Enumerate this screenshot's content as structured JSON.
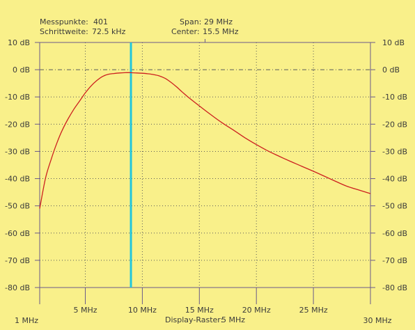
{
  "header": {
    "points_label": "Messpunkte:",
    "points_value": "401",
    "step_label": "Schrittweite:",
    "step_value": "72.5 kHz",
    "span_label": "Span:",
    "span_value": "29 MHz",
    "center_label": "Center:",
    "center_value": "15.5 MHz"
  },
  "footer": {
    "raster_label": "Display-Raster:",
    "raster_value": "5 MHz"
  },
  "colors": {
    "background": "#f9f08a",
    "axis": "#6a5a8a",
    "grid": "#5a5a5a",
    "trace": "#cc1f1f",
    "marker": "#22c6dc"
  },
  "chart_data": {
    "type": "line",
    "xlim": [
      1,
      30
    ],
    "ylim": [
      -80,
      10
    ],
    "x_unit": "MHz",
    "y_unit": "dB",
    "xticks": [
      {
        "value": 1,
        "label": "1 MHz"
      },
      {
        "value": 5,
        "label": "5 MHz"
      },
      {
        "value": 10,
        "label": "10 MHz"
      },
      {
        "value": 15,
        "label": "15 MHz"
      },
      {
        "value": 20,
        "label": "20 MHz"
      },
      {
        "value": 25,
        "label": "25 MHz"
      },
      {
        "value": 30,
        "label": "30 MHz"
      }
    ],
    "yticks": [
      {
        "value": 10,
        "label": "10 dB"
      },
      {
        "value": 0,
        "label": "0 dB"
      },
      {
        "value": -10,
        "label": "-10 dB"
      },
      {
        "value": -20,
        "label": "-20 dB"
      },
      {
        "value": -30,
        "label": "-30 dB"
      },
      {
        "value": -40,
        "label": "-40 dB"
      },
      {
        "value": -50,
        "label": "-50 dB"
      },
      {
        "value": -60,
        "label": "-60 dB"
      },
      {
        "value": -70,
        "label": "-70 dB"
      },
      {
        "value": -80,
        "label": "-80 dB"
      }
    ],
    "grid": true,
    "reference_level_db": 0,
    "marker_x": 9.0,
    "series": [
      {
        "x": [
          1,
          1.5,
          2,
          2.5,
          3,
          3.5,
          4,
          4.5,
          5,
          5.5,
          6,
          6.5,
          7,
          7.5,
          8,
          8.5,
          9,
          9.5,
          10,
          10.5,
          11,
          11.5,
          12,
          12.5,
          13,
          13.5,
          14,
          15,
          16,
          17,
          18,
          19,
          20,
          21,
          22,
          23,
          24,
          25,
          26,
          27,
          28,
          29,
          30
        ],
        "y": [
          -51,
          -40,
          -33,
          -27,
          -22,
          -18,
          -14.5,
          -11.5,
          -8.5,
          -6,
          -4,
          -2.5,
          -1.7,
          -1.4,
          -1.2,
          -1.1,
          -1.1,
          -1.2,
          -1.3,
          -1.5,
          -1.8,
          -2.3,
          -3.2,
          -4.6,
          -6.3,
          -8.2,
          -10,
          -13.3,
          -16.5,
          -19.5,
          -22.2,
          -25,
          -27.5,
          -29.8,
          -31.8,
          -33.7,
          -35.5,
          -37.3,
          -39.2,
          -41.1,
          -42.9,
          -44.2,
          -45.5
        ]
      }
    ]
  }
}
